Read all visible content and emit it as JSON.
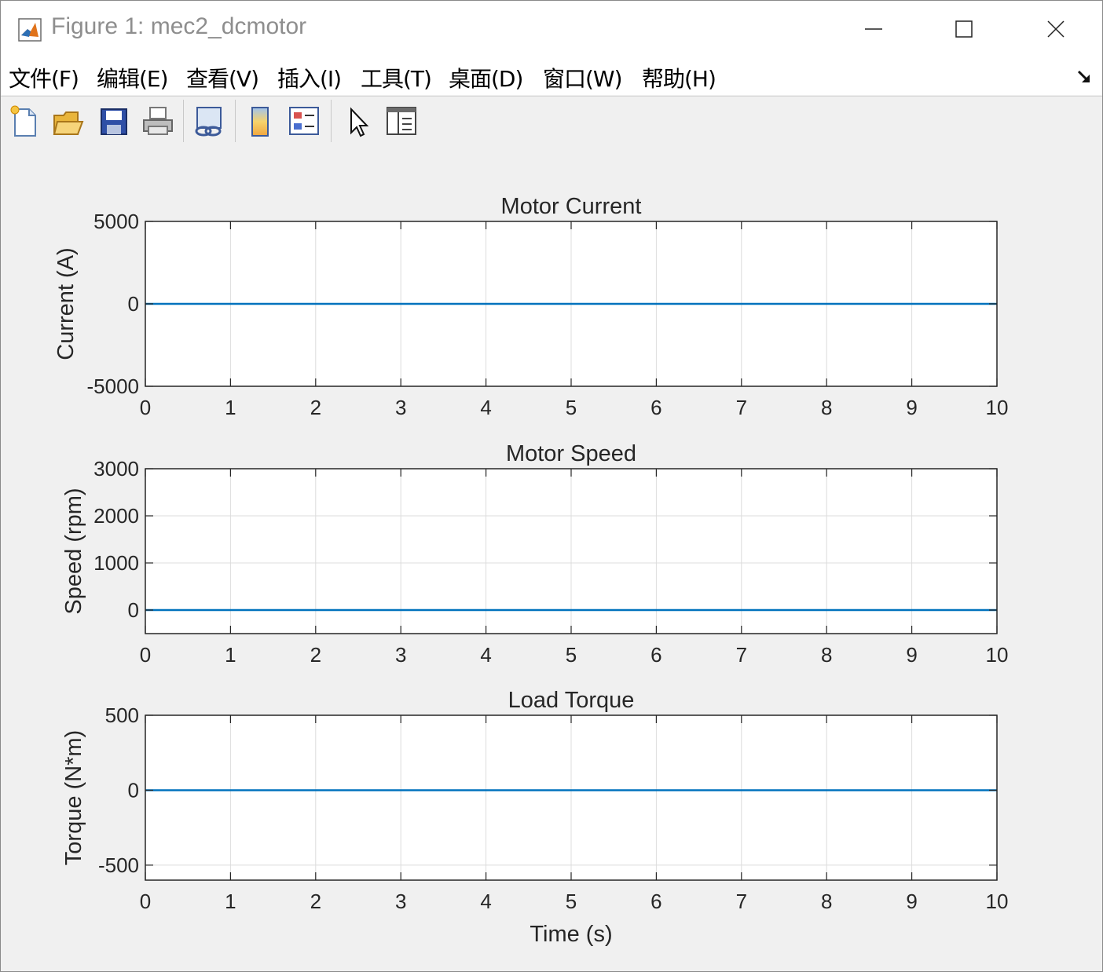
{
  "window": {
    "title": "Figure 1: mec2_dcmotor",
    "controls": [
      "minimize",
      "maximize",
      "close"
    ]
  },
  "menu": [
    {
      "label": "文件(F)"
    },
    {
      "label": "编辑(E)"
    },
    {
      "label": "查看(V)"
    },
    {
      "label": "插入(I)"
    },
    {
      "label": "工具(T)"
    },
    {
      "label": "桌面(D)"
    },
    {
      "label": "窗口(W)"
    },
    {
      "label": "帮助(H)"
    }
  ],
  "toolbar": {
    "buttons": [
      "new-figure-icon",
      "open-file-icon",
      "save-icon",
      "print-icon",
      "link-plot-icon",
      "colorbar-icon",
      "legend-icon",
      "edit-plot-pointer-icon",
      "property-editor-icon"
    ]
  },
  "colors": {
    "line": "#0072BD",
    "grid": "#dcdcdc",
    "axes": "#262626",
    "figure_bg": "#f0f0f0"
  },
  "chart_data": [
    {
      "type": "line",
      "title": "Motor Current",
      "xlabel": "",
      "ylabel": "Current (A)",
      "xlim": [
        0,
        10
      ],
      "ylim": [
        -5000,
        5000
      ],
      "xticks": [
        "0",
        "1",
        "2",
        "3",
        "4",
        "5",
        "6",
        "7",
        "8",
        "9",
        "10"
      ],
      "yticks": [
        "-5000",
        "0",
        "5000"
      ],
      "grid": true,
      "series": [
        {
          "x": [
            0,
            10
          ],
          "y": [
            0,
            0
          ]
        }
      ]
    },
    {
      "type": "line",
      "title": "Motor Speed",
      "xlabel": "",
      "ylabel": "Speed (rpm)",
      "xlim": [
        0,
        10
      ],
      "ylim": [
        -500,
        3000
      ],
      "xticks": [
        "0",
        "1",
        "2",
        "3",
        "4",
        "5",
        "6",
        "7",
        "8",
        "9",
        "10"
      ],
      "yticks": [
        "0",
        "1000",
        "2000",
        "3000"
      ],
      "grid": true,
      "series": [
        {
          "x": [
            0,
            10
          ],
          "y": [
            0,
            0
          ]
        }
      ]
    },
    {
      "type": "line",
      "title": "Load Torque",
      "xlabel": "Time (s)",
      "ylabel": "Torque (N*m)",
      "xlim": [
        0,
        10
      ],
      "ylim": [
        -600,
        500
      ],
      "xticks": [
        "0",
        "1",
        "2",
        "3",
        "4",
        "5",
        "6",
        "7",
        "8",
        "9",
        "10"
      ],
      "yticks": [
        "-500",
        "0",
        "500"
      ],
      "grid": true,
      "series": [
        {
          "x": [
            0,
            10
          ],
          "y": [
            0,
            0
          ]
        }
      ]
    }
  ]
}
